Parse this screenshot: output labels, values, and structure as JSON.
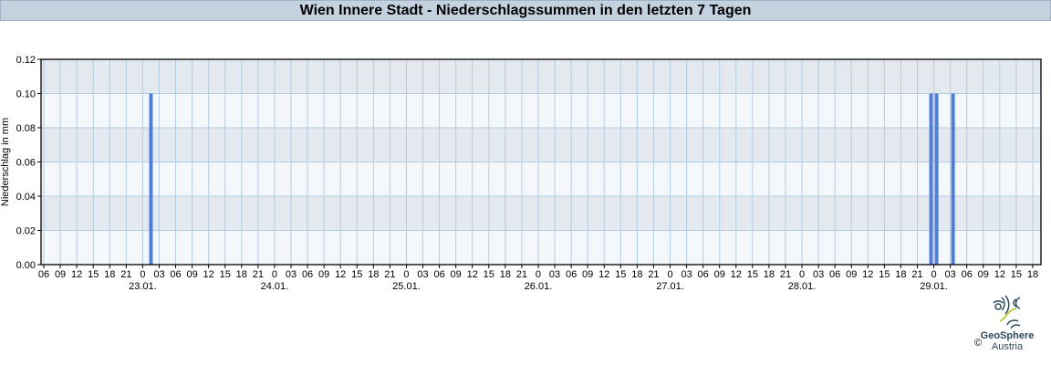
{
  "chart_data": {
    "type": "bar",
    "title": "Wien Innere Stadt - Niederschlagssummen in den letzten 7 Tagen",
    "ylabel": "Niederschlag in mm",
    "xlabel": "",
    "ylim": [
      0,
      0.12
    ],
    "yticks": [
      "0.00",
      "0.02",
      "0.04",
      "0.06",
      "0.08",
      "0.10",
      "0.12"
    ],
    "xrange": [
      "22.01. 05:30",
      "29.01. 19:30"
    ],
    "hour_ticks": [
      "06",
      "09",
      "12",
      "15",
      "18",
      "21",
      "0",
      "03",
      "06",
      "09",
      "12",
      "15",
      "18",
      "21",
      "0",
      "03",
      "06",
      "09",
      "12",
      "15",
      "18",
      "21",
      "0",
      "03",
      "06",
      "09",
      "12",
      "15",
      "18",
      "21",
      "0",
      "03",
      "06",
      "09",
      "12",
      "15",
      "18",
      "21",
      "0",
      "03",
      "06",
      "09",
      "12",
      "15",
      "18",
      "21",
      "0",
      "03",
      "06",
      "09",
      "12",
      "15",
      "18",
      "21",
      "0",
      "03",
      "06",
      "09",
      "12",
      "15",
      "18"
    ],
    "day_labels": [
      "23.01.",
      "24.01.",
      "25.01.",
      "26.01.",
      "27.01.",
      "28.01.",
      "29.01."
    ],
    "grid": true,
    "bar_color": "#4f7fd8",
    "bars": [
      {
        "time": "23.01. 02:00",
        "value": 0.1
      },
      {
        "time": "29.01. 00:00",
        "value": 0.1
      },
      {
        "time": "29.01. 01:00",
        "value": 0.1
      },
      {
        "time": "29.01. 04:00",
        "value": 0.1
      }
    ]
  },
  "logo": {
    "name": "GeoSphere",
    "sub": "Austria",
    "copyright": "©"
  }
}
